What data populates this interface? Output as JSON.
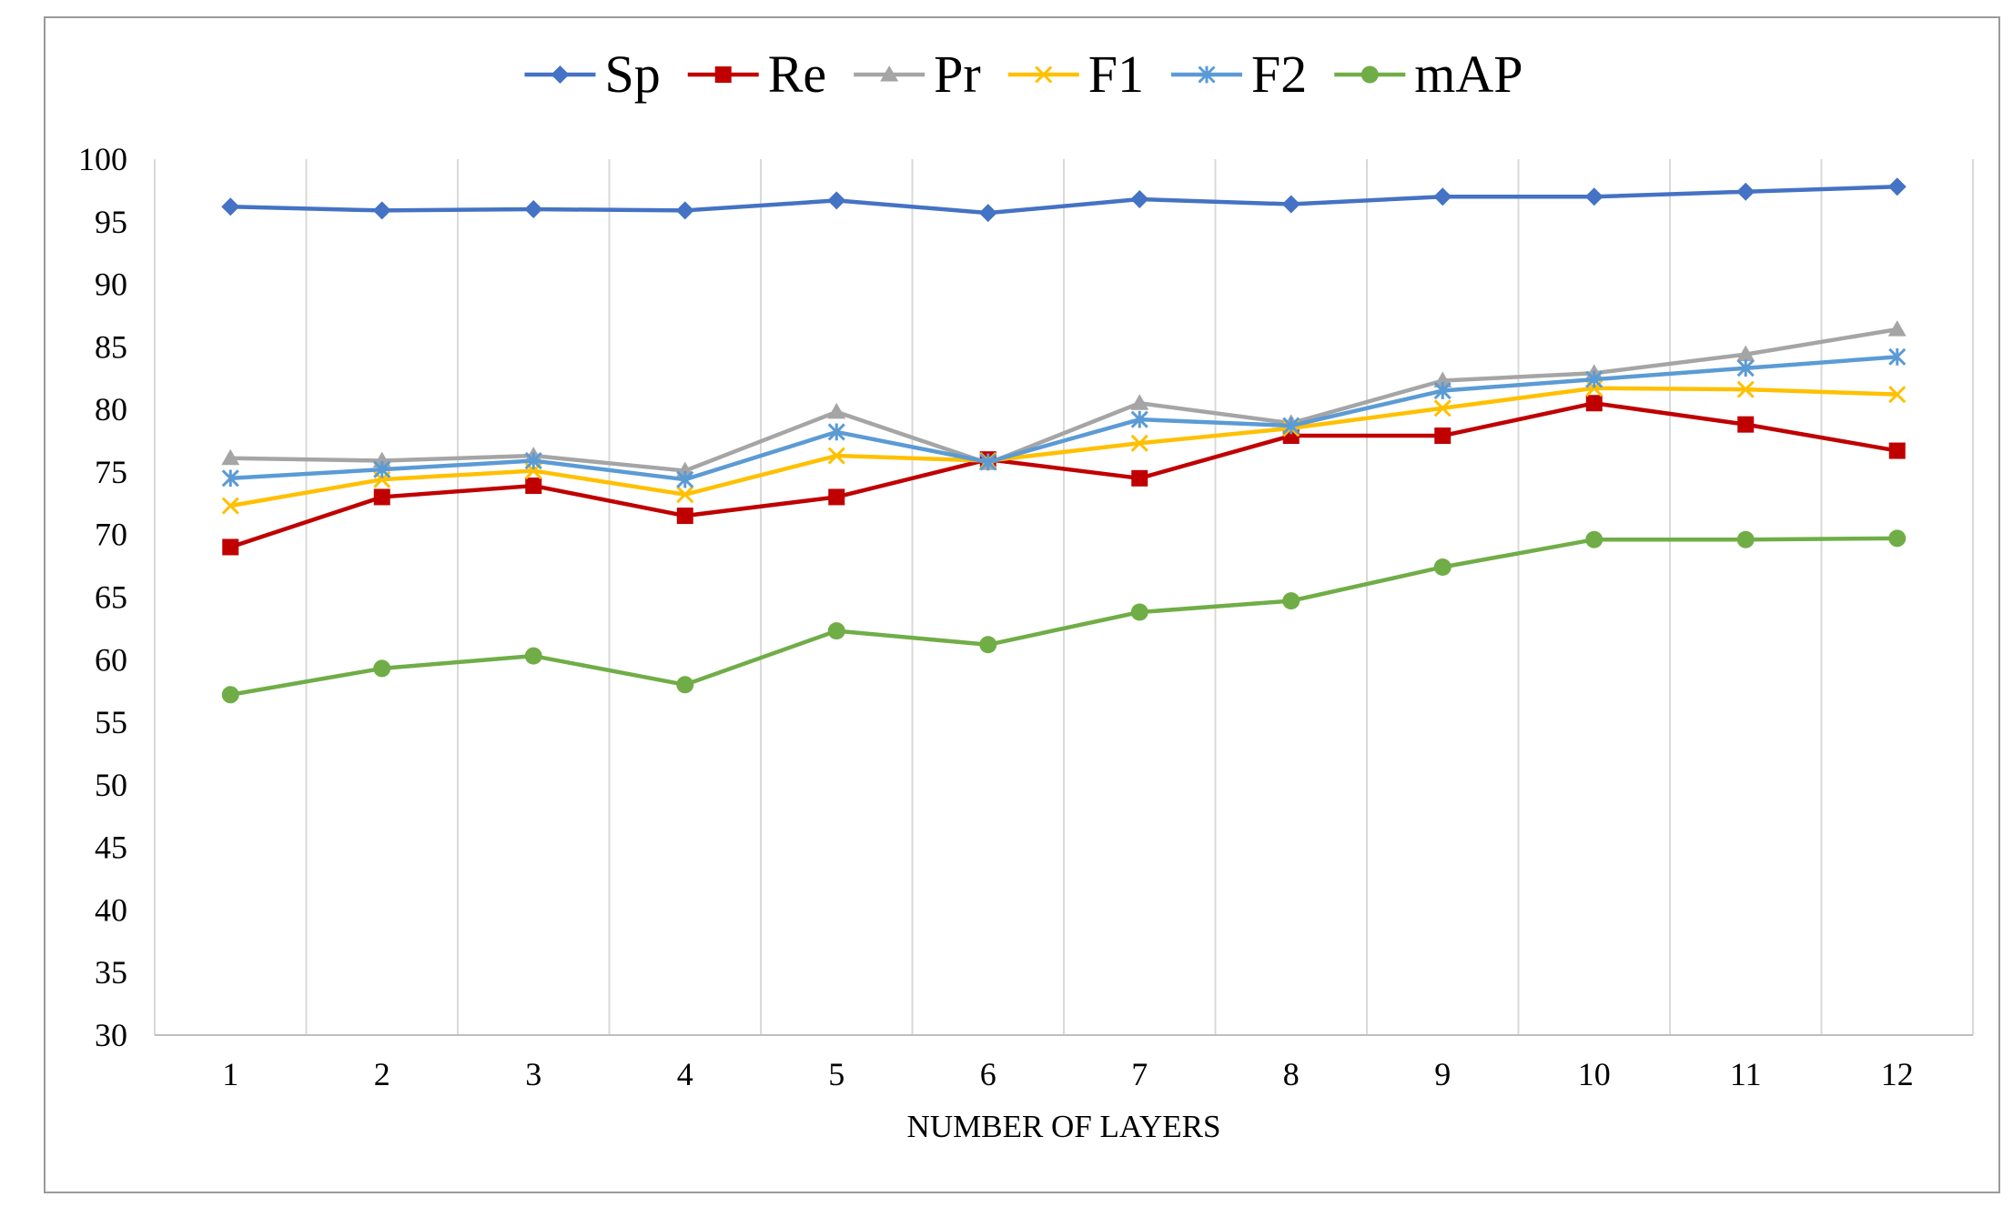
{
  "chart_data": {
    "type": "line",
    "title": "",
    "xlabel": "NUMBER OF LAYERS",
    "ylabel": "",
    "categories": [
      "1",
      "2",
      "3",
      "4",
      "5",
      "6",
      "7",
      "8",
      "9",
      "10",
      "11",
      "12"
    ],
    "ylim": [
      30,
      100
    ],
    "yticks": [
      30,
      35,
      40,
      45,
      50,
      55,
      60,
      65,
      70,
      75,
      80,
      85,
      90,
      95,
      100
    ],
    "y_tick_labels": [
      "30",
      "35",
      "40",
      "45",
      "50",
      "55",
      "60",
      "65",
      "70",
      "75",
      "80",
      "85",
      "90",
      "95",
      "100"
    ],
    "grid": "vertical",
    "legend_position": "top",
    "series": [
      {
        "name": "Sp",
        "color": "#4472C4",
        "marker": "diamond",
        "values": [
          96.2,
          95.9,
          96.0,
          95.9,
          96.7,
          95.7,
          96.8,
          96.4,
          97.0,
          97.0,
          97.4,
          97.8
        ]
      },
      {
        "name": "Re",
        "color": "#C00000",
        "marker": "square",
        "values": [
          69.0,
          73.0,
          73.9,
          71.5,
          73.0,
          76.0,
          74.5,
          77.9,
          77.9,
          80.5,
          78.8,
          76.7
        ]
      },
      {
        "name": "Pr",
        "color": "#A5A5A5",
        "marker": "triangle",
        "values": [
          76.1,
          75.9,
          76.3,
          75.1,
          79.8,
          75.7,
          80.5,
          78.9,
          82.3,
          82.9,
          84.4,
          86.4
        ]
      },
      {
        "name": "F1",
        "color": "#FFC000",
        "marker": "x",
        "values": [
          72.3,
          74.4,
          75.1,
          73.2,
          76.3,
          75.9,
          77.3,
          78.5,
          80.1,
          81.7,
          81.6,
          81.2
        ]
      },
      {
        "name": "F2",
        "color": "#5B9BD5",
        "marker": "star",
        "values": [
          74.5,
          75.2,
          75.9,
          74.4,
          78.2,
          75.8,
          79.2,
          78.7,
          81.5,
          82.4,
          83.3,
          84.2
        ]
      },
      {
        "name": "mAP",
        "color": "#70AD47",
        "marker": "circle",
        "values": [
          57.2,
          59.3,
          60.3,
          58.0,
          62.3,
          61.2,
          63.8,
          64.7,
          67.4,
          69.6,
          69.6,
          69.7
        ]
      }
    ]
  }
}
